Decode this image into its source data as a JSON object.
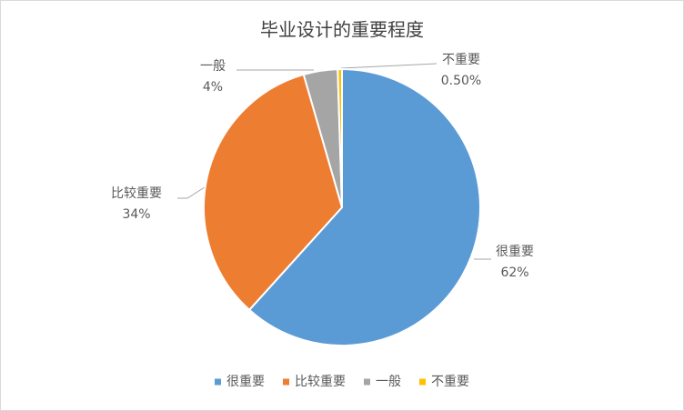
{
  "chart_data": {
    "type": "pie",
    "title": "毕业设计的重要程度",
    "categories": [
      "很重要",
      "比较重要",
      "一般",
      "不重要"
    ],
    "values": [
      62,
      34,
      4,
      0.5
    ],
    "value_labels": [
      "62%",
      "34%",
      "4%",
      "0.50%"
    ],
    "colors": [
      "#5b9bd5",
      "#ed7d31",
      "#a5a5a5",
      "#ffc000"
    ],
    "legend": "bottom"
  }
}
